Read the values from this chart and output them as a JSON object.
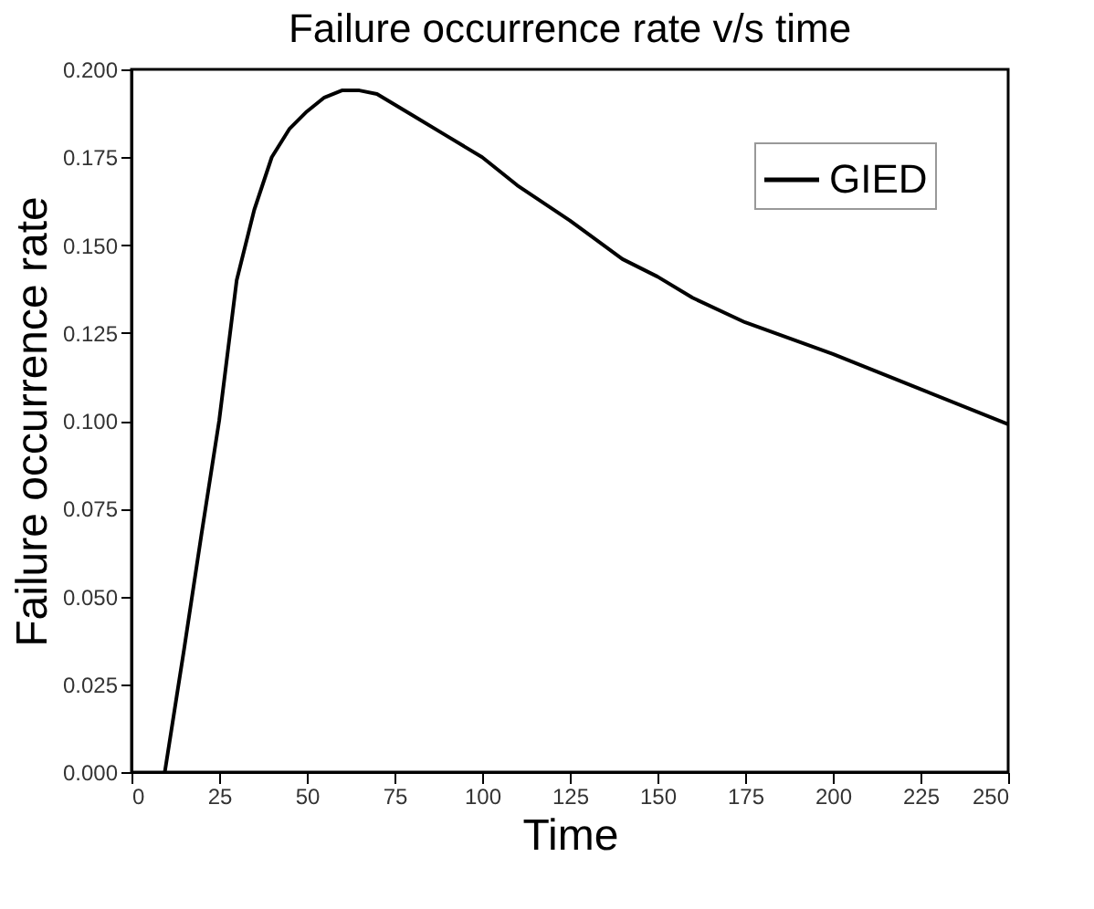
{
  "chart_data": {
    "type": "line",
    "title": "Failure occurrence rate v/s time",
    "xlabel": "Time",
    "ylabel": "Failure occurrence rate",
    "x": [
      9.5,
      15,
      20,
      25,
      30,
      35,
      40,
      45,
      50,
      55,
      60,
      65,
      70,
      80,
      90,
      100,
      110,
      125,
      140,
      150,
      160,
      175,
      200,
      225,
      250
    ],
    "series": [
      {
        "name": "GIED",
        "color": "#000000",
        "values": [
          0.0,
          0.035,
          0.068,
          0.1,
          0.14,
          0.16,
          0.175,
          0.183,
          0.188,
          0.192,
          0.194,
          0.194,
          0.193,
          0.187,
          0.181,
          0.175,
          0.167,
          0.157,
          0.146,
          0.141,
          0.135,
          0.128,
          0.119,
          0.109,
          0.099
        ]
      }
    ],
    "xlim": [
      0,
      250
    ],
    "xticks": [
      0,
      25,
      50,
      75,
      100,
      125,
      150,
      175,
      200,
      225,
      250
    ],
    "ylim": [
      0,
      0.2
    ],
    "yticks": [
      {
        "value": 0,
        "label": "0.000"
      },
      {
        "value": 0.025,
        "label": "0.025"
      },
      {
        "value": 0.05,
        "label": "0.050"
      },
      {
        "value": 0.075,
        "label": "0.075"
      },
      {
        "value": 0.1,
        "label": "0.100"
      },
      {
        "value": 0.125,
        "label": "0.125"
      },
      {
        "value": 0.15,
        "label": "0.150"
      },
      {
        "value": 0.175,
        "label": "0.175"
      },
      {
        "value": 0.2,
        "label": "0.200"
      }
    ],
    "grid": false,
    "legend": "top right",
    "marker": "none",
    "line_style": "solid"
  }
}
